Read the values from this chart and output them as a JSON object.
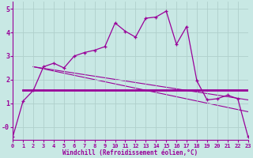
{
  "background_color": "#c8e8e4",
  "line_color": "#990099",
  "grid_color": "#b0d0cc",
  "xlabel": "Windchill (Refroidissement éolien,°C)",
  "xlim": [
    0,
    23
  ],
  "ylim": [
    -0.55,
    5.3
  ],
  "yticks": [
    0,
    1,
    2,
    3,
    4,
    5
  ],
  "ytick_labels": [
    "-0",
    "1",
    "2",
    "3",
    "4",
    "5"
  ],
  "xticks": [
    0,
    1,
    2,
    3,
    4,
    5,
    6,
    7,
    8,
    9,
    10,
    11,
    12,
    13,
    14,
    15,
    16,
    17,
    18,
    19,
    20,
    21,
    22,
    23
  ],
  "curve_x": [
    0,
    1,
    2,
    3,
    4,
    5,
    6,
    7,
    8,
    9,
    10,
    11,
    12,
    13,
    14,
    15,
    16,
    17,
    18,
    19,
    20,
    21,
    22,
    23
  ],
  "curve_y": [
    -0.4,
    1.1,
    1.55,
    2.55,
    2.7,
    2.5,
    3.0,
    3.15,
    3.25,
    3.4,
    4.4,
    4.05,
    3.8,
    4.6,
    4.65,
    4.9,
    3.5,
    4.25,
    1.95,
    1.15,
    1.2,
    1.35,
    1.2,
    -0.4
  ],
  "flat_line_x": [
    1,
    23
  ],
  "flat_line_y": [
    1.55,
    1.55
  ],
  "diag_line_x": [
    2,
    23
  ],
  "diag_line_y": [
    2.55,
    1.15
  ],
  "diag_line2_x": [
    2,
    23
  ],
  "diag_line2_y": [
    2.55,
    0.65
  ]
}
